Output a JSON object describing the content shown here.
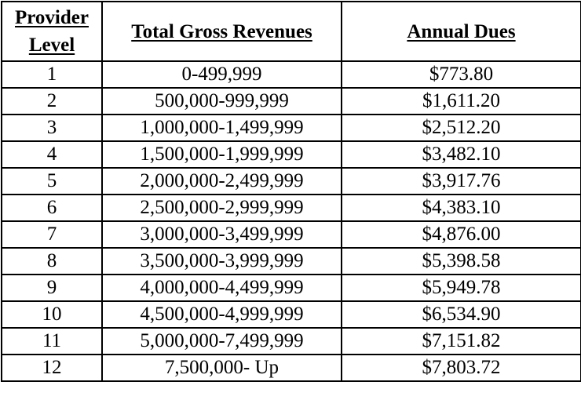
{
  "table": {
    "headers": {
      "level_line1": "Provider",
      "level_line2": "Level",
      "revenues": "Total Gross Revenues",
      "dues": "Annual Dues"
    },
    "rows": [
      {
        "level": "1",
        "revenues": "0-499,999",
        "dues": "$773.80"
      },
      {
        "level": "2",
        "revenues": "500,000-999,999",
        "dues": "$1,611.20"
      },
      {
        "level": "3",
        "revenues": "1,000,000-1,499,999",
        "dues": "$2,512.20"
      },
      {
        "level": "4",
        "revenues": "1,500,000-1,999,999",
        "dues": "$3,482.10"
      },
      {
        "level": "5",
        "revenues": "2,000,000-2,499,999",
        "dues": "$3,917.76"
      },
      {
        "level": "6",
        "revenues": "2,500,000-2,999,999",
        "dues": "$4,383.10"
      },
      {
        "level": "7",
        "revenues": "3,000,000-3,499,999",
        "dues": "$4,876.00"
      },
      {
        "level": "8",
        "revenues": "3,500,000-3,999,999",
        "dues": "$5,398.58"
      },
      {
        "level": "9",
        "revenues": "4,000,000-4,499,999",
        "dues": "$5,949.78"
      },
      {
        "level": "10",
        "revenues": "4,500,000-4,999,999",
        "dues": "$6,534.90"
      },
      {
        "level": "11",
        "revenues": "5,000,000-7,499,999",
        "dues": "$7,151.82"
      },
      {
        "level": "12",
        "revenues": "7,500,000- Up",
        "dues": "$7,803.72"
      }
    ]
  }
}
